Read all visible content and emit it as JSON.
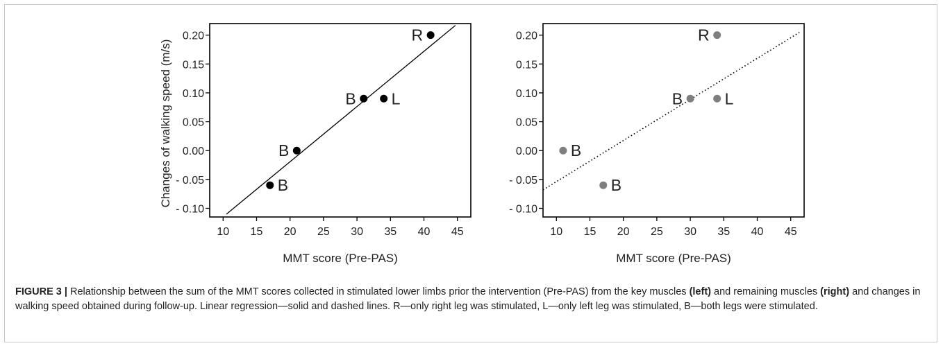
{
  "figure_label": "FIGURE 3 |",
  "caption": {
    "t1": " Relationship between the sum of the MMT scores collected in stimulated lower limbs prior the intervention (Pre-PAS) from the key muscles ",
    "b1": "(left)",
    "t2": " and remaining muscles ",
    "b2": "(right)",
    "t3": " and changes in walking speed obtained during follow-up. Linear regression—solid and dashed lines. R—only right leg was stimulated, L—only left leg was stimulated, B—both legs were stimulated."
  },
  "chart_data": [
    {
      "type": "scatter",
      "panel": "left",
      "xlabel": "MMT score (Pre-PAS)",
      "ylabel": "Changes of walking speed (m/s)",
      "xlim": [
        8,
        47
      ],
      "ylim": [
        -0.115,
        0.22
      ],
      "xticks": [
        "10",
        "15",
        "20",
        "25",
        "30",
        "35",
        "40",
        "45"
      ],
      "xtick_values": [
        10,
        15,
        20,
        25,
        30,
        35,
        40,
        45
      ],
      "yticks": [
        "0.20",
        "0.15",
        "0.10",
        "0.05",
        "0.00",
        "- 0.05",
        "- 0.10"
      ],
      "ytick_values": [
        0.2,
        0.15,
        0.1,
        0.05,
        0.0,
        -0.05,
        -0.1
      ],
      "marker_color": "#000000",
      "points": [
        {
          "x": 41,
          "y": 0.2,
          "label": "R",
          "label_side": "left"
        },
        {
          "x": 31,
          "y": 0.09,
          "label": "B",
          "label_side": "left"
        },
        {
          "x": 34,
          "y": 0.09,
          "label": "L",
          "label_side": "right"
        },
        {
          "x": 21,
          "y": 0.0,
          "label": "B",
          "label_side": "left"
        },
        {
          "x": 17,
          "y": -0.06,
          "label": "B",
          "label_side": "right"
        }
      ],
      "regression": {
        "style": "solid",
        "slope": 0.00956,
        "intercept": -0.2105,
        "x_range": [
          10.5,
          44.7
        ]
      }
    },
    {
      "type": "scatter",
      "panel": "right",
      "xlabel": "MMT score (Pre-PAS)",
      "ylabel": "",
      "xlim": [
        8,
        47
      ],
      "ylim": [
        -0.115,
        0.22
      ],
      "xticks": [
        "10",
        "15",
        "20",
        "25",
        "30",
        "35",
        "40",
        "45"
      ],
      "xtick_values": [
        10,
        15,
        20,
        25,
        30,
        35,
        40,
        45
      ],
      "yticks": [
        "0.20",
        "0.15",
        "0.10",
        "0.05",
        "0.00",
        "- 0.05",
        "- 0.10"
      ],
      "ytick_values": [
        0.2,
        0.15,
        0.1,
        0.05,
        0.0,
        -0.05,
        -0.1
      ],
      "marker_color": "#7f7f7f",
      "points": [
        {
          "x": 34,
          "y": 0.2,
          "label": "R",
          "label_side": "left"
        },
        {
          "x": 30,
          "y": 0.09,
          "label": "B",
          "label_side": "left"
        },
        {
          "x": 34,
          "y": 0.09,
          "label": "L",
          "label_side": "right"
        },
        {
          "x": 11,
          "y": 0.0,
          "label": "B",
          "label_side": "right"
        },
        {
          "x": 17,
          "y": -0.06,
          "label": "B",
          "label_side": "right"
        }
      ],
      "regression": {
        "style": "dotted",
        "slope": 0.00712,
        "intercept": -0.125,
        "x_range": [
          8,
          46.3
        ]
      }
    }
  ]
}
